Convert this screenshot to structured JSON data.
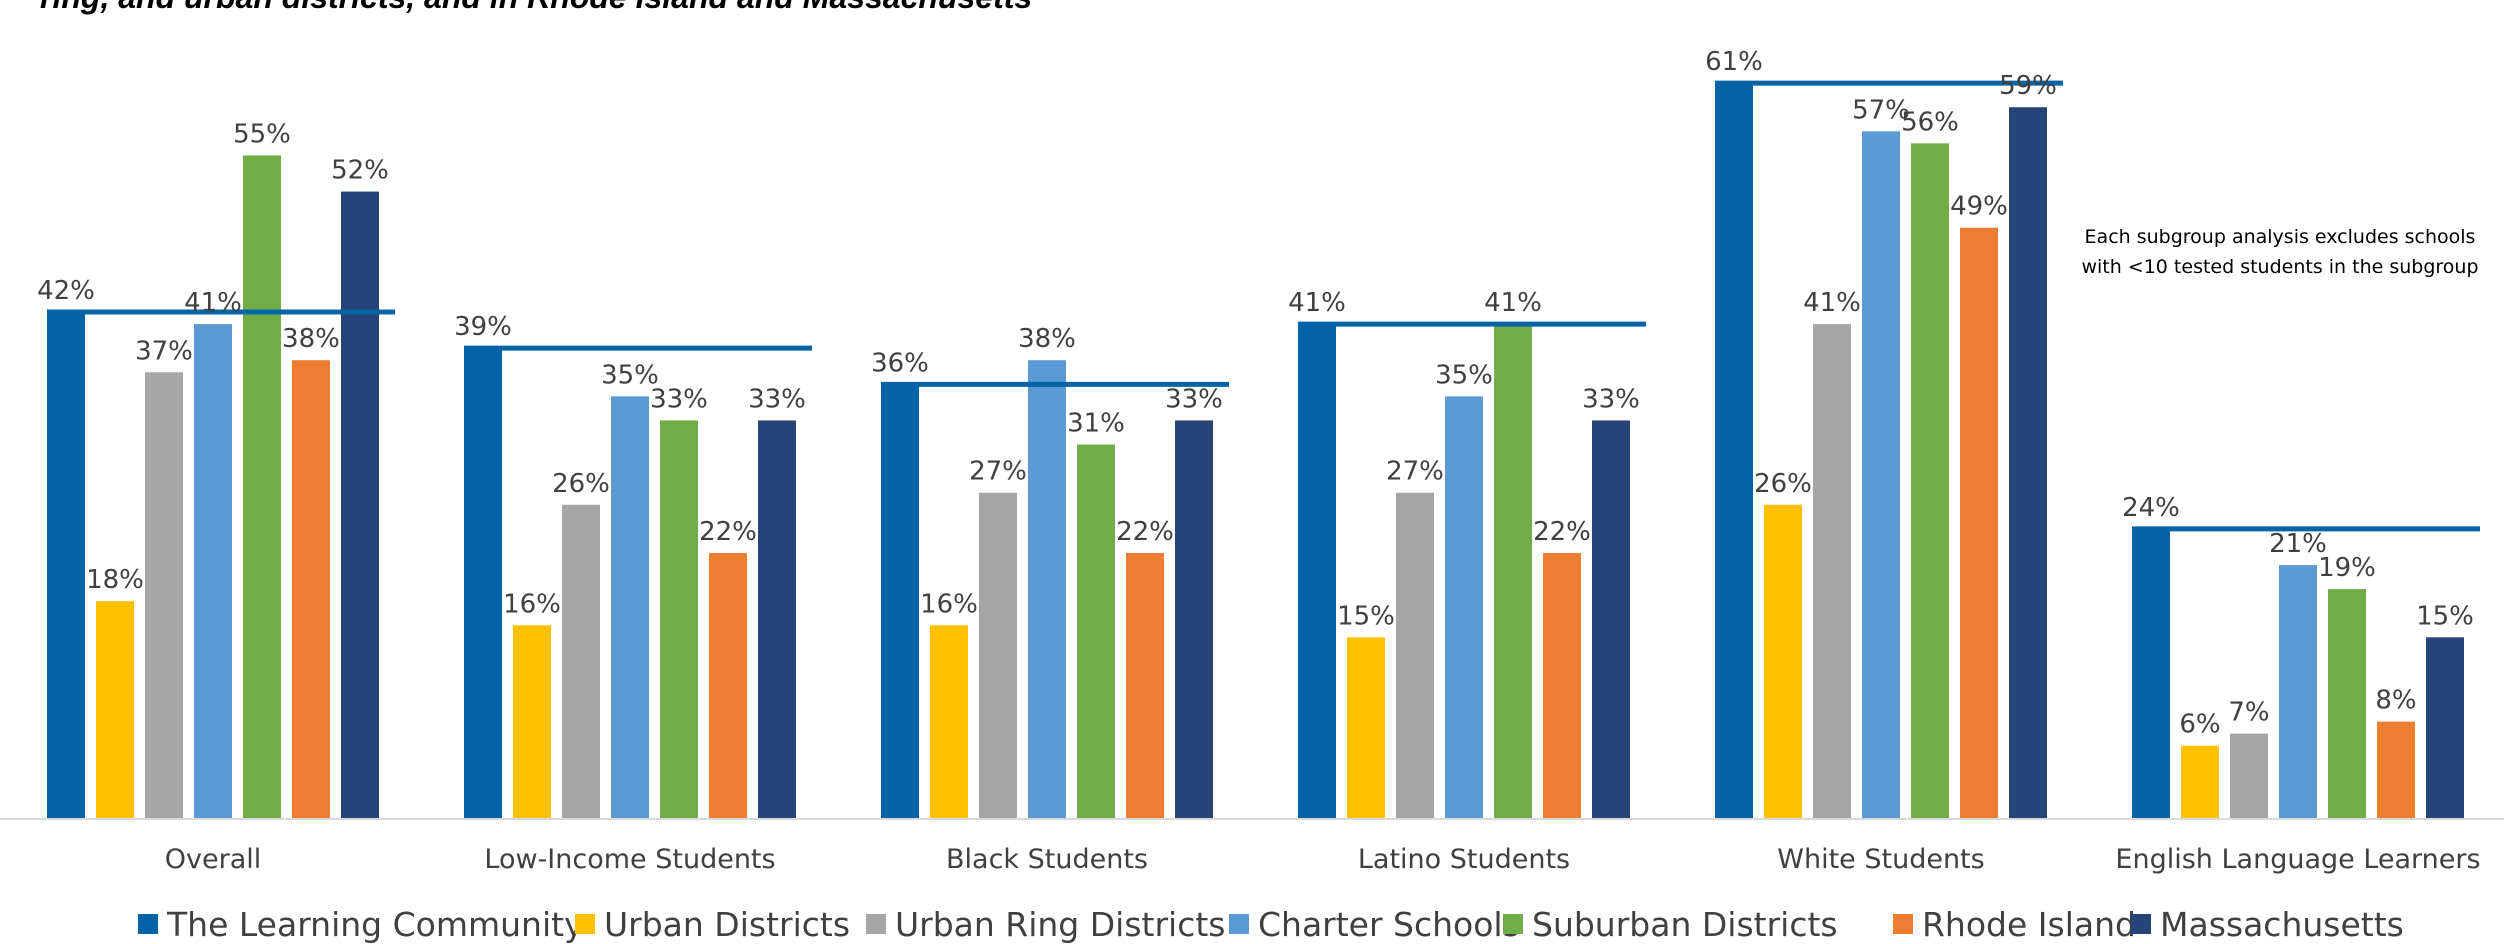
{
  "chart_data": {
    "type": "bar",
    "title": "ring, and urban districts, and in Rhode Island and Massachusetts",
    "note": [
      "Each subgroup analysis excludes schools",
      "with <10 tested students in the subgroup"
    ],
    "categories": [
      "Overall",
      "Low-Income Students",
      "Black Students",
      "Latino Students",
      "White Students",
      "English Language Learners"
    ],
    "ylim": [
      0,
      64
    ],
    "grid": false,
    "legend_position": "bottom",
    "reference_line_series": "The Learning Community",
    "series": [
      {
        "name": "The Learning Community",
        "color": "#0563A6",
        "values": [
          42,
          39,
          36,
          41,
          61,
          24
        ]
      },
      {
        "name": "Urban Districts",
        "color": "#FFC000",
        "values": [
          18,
          16,
          16,
          15,
          26,
          6
        ]
      },
      {
        "name": "Urban Ring Districts",
        "color": "#A5A5A5",
        "values": [
          37,
          26,
          27,
          27,
          41,
          7
        ]
      },
      {
        "name": "Charter Schools",
        "color": "#5B9BD5",
        "values": [
          41,
          35,
          38,
          35,
          57,
          21
        ]
      },
      {
        "name": "Suburban Districts",
        "color": "#70AD47",
        "values": [
          55,
          33,
          31,
          41,
          56,
          19
        ]
      },
      {
        "name": "Rhode Island",
        "color": "#ED7D31",
        "values": [
          38,
          22,
          22,
          22,
          49,
          8
        ]
      },
      {
        "name": "Massachusetts",
        "color": "#264478",
        "values": [
          52,
          33,
          33,
          33,
          59,
          15
        ]
      }
    ]
  }
}
